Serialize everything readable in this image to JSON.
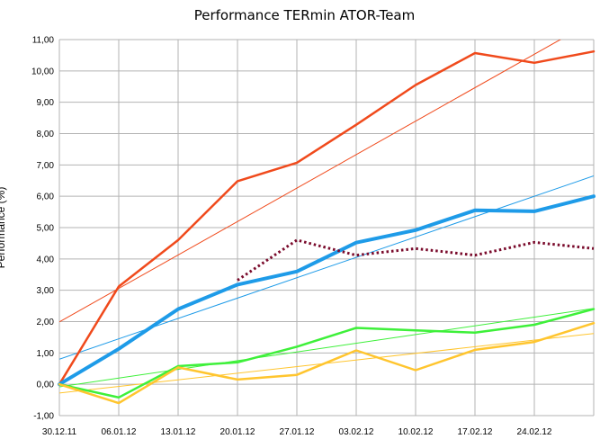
{
  "chart_data": {
    "type": "line",
    "title": "Performance TERmin ATOR-Team",
    "xlabel": "",
    "ylabel": "Performance (%)",
    "ylim": [
      -1,
      11
    ],
    "yticks": [
      "-1,00",
      "0,00",
      "1,00",
      "2,00",
      "3,00",
      "4,00",
      "5,00",
      "6,00",
      "7,00",
      "8,00",
      "9,00",
      "10,00",
      "11,00"
    ],
    "categories": [
      "30.12.11",
      "06.01.12",
      "13.01.12",
      "20.01.12",
      "27.01.12",
      "03.02.12",
      "10.02.12",
      "17.02.12",
      "24.02.12",
      ""
    ],
    "xtick_labels": [
      "30.12.11",
      "06.01.12",
      "13.01.12",
      "20.01.12",
      "27.01.12",
      "03.02.12",
      "10.02.12",
      "17.02.12",
      "24.02.12"
    ],
    "grid": true,
    "series": [
      {
        "color": "#f04a1c",
        "width": 2.5,
        "style": "solid",
        "values": [
          0.0,
          3.12,
          4.6,
          6.48,
          7.07,
          8.28,
          9.55,
          10.57,
          10.26,
          10.62
        ],
        "trend": [
          1.99,
          11.6
        ]
      },
      {
        "color": "#1e9be8",
        "width": 4,
        "style": "solid",
        "values": [
          0.0,
          1.13,
          2.4,
          3.18,
          3.6,
          4.52,
          4.92,
          5.55,
          5.52,
          6.0
        ],
        "trend": [
          0.8,
          6.65
        ]
      },
      {
        "color": "#7a0b2c",
        "width": 3,
        "style": "dotted",
        "values": [
          null,
          null,
          null,
          3.32,
          4.6,
          4.12,
          4.33,
          4.12,
          4.53,
          4.33
        ]
      },
      {
        "color": "#3ef03a",
        "width": 2.5,
        "style": "solid",
        "values": [
          0.0,
          -0.42,
          0.58,
          0.7,
          1.2,
          1.8,
          1.72,
          1.65,
          1.9,
          2.4
        ],
        "trend": [
          -0.08,
          2.42
        ]
      },
      {
        "color": "#ffc52e",
        "width": 2.5,
        "style": "solid",
        "values": [
          0.0,
          -0.6,
          0.54,
          0.15,
          0.3,
          1.08,
          0.45,
          1.1,
          1.35,
          1.95
        ],
        "trend": [
          -0.28,
          1.62
        ]
      }
    ]
  }
}
